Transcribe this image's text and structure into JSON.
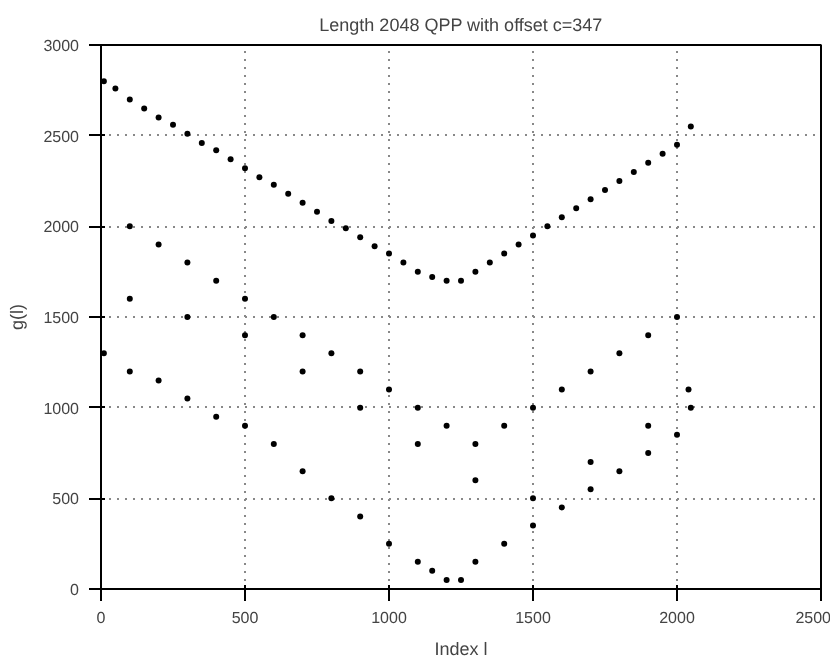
{
  "chart_data": {
    "type": "scatter",
    "title": "Length 2048 QPP with offset c=347",
    "xlabel": "Index l",
    "ylabel": "g(l)",
    "x": [
      10,
      50,
      100,
      150,
      200,
      250,
      300,
      350,
      400,
      450,
      500,
      550,
      600,
      650,
      700,
      750,
      800,
      850,
      900,
      950,
      1000,
      1050,
      1100,
      1150,
      1200,
      1250,
      1300,
      1350,
      1400,
      1450,
      1500,
      1550,
      1600,
      1650,
      1700,
      1750,
      1800,
      1850,
      1900,
      1950,
      2000,
      2048,
      10,
      100,
      200,
      300,
      400,
      500,
      600,
      700,
      800,
      900,
      1000,
      1100,
      1150,
      1200,
      1250,
      1300,
      1400,
      1500,
      1600,
      1700,
      1800,
      1900,
      2000,
      2048,
      100,
      200,
      300,
      400,
      500,
      600,
      700,
      800,
      900,
      1000,
      1100,
      1200,
      1300,
      1400,
      1500,
      1600,
      1700,
      1800,
      1900,
      2000,
      100,
      300,
      500,
      700,
      900,
      1100,
      1300,
      1500,
      1700,
      1900,
      2040
    ],
    "values": [
      2800,
      2760,
      2700,
      2650,
      2600,
      2560,
      2510,
      2460,
      2420,
      2370,
      2320,
      2270,
      2230,
      2180,
      2130,
      2080,
      2030,
      1990,
      1940,
      1890,
      1850,
      1800,
      1750,
      1720,
      1700,
      1700,
      1750,
      1800,
      1850,
      1900,
      1950,
      2000,
      2050,
      2100,
      2150,
      2200,
      2250,
      2300,
      2350,
      2400,
      2450,
      2550,
      1300,
      1200,
      1150,
      1050,
      950,
      900,
      800,
      650,
      500,
      400,
      250,
      150,
      100,
      50,
      50,
      150,
      250,
      350,
      450,
      550,
      650,
      750,
      850,
      1000,
      2000,
      1900,
      1800,
      1700,
      1600,
      1500,
      1400,
      1300,
      1200,
      1100,
      1000,
      900,
      800,
      900,
      1000,
      1100,
      1200,
      1300,
      1400,
      1500,
      1600,
      1500,
      1400,
      1200,
      1000,
      800,
      600,
      500,
      700,
      900,
      1100
    ],
    "xlim": [
      0,
      2500
    ],
    "ylim": [
      0,
      3000
    ],
    "xticks": [
      0,
      500,
      1000,
      1500,
      2000,
      2500
    ],
    "yticks": [
      0,
      500,
      1000,
      1500,
      2000,
      2500,
      3000
    ],
    "grid": true,
    "marker": "circle",
    "color": "#000000"
  }
}
